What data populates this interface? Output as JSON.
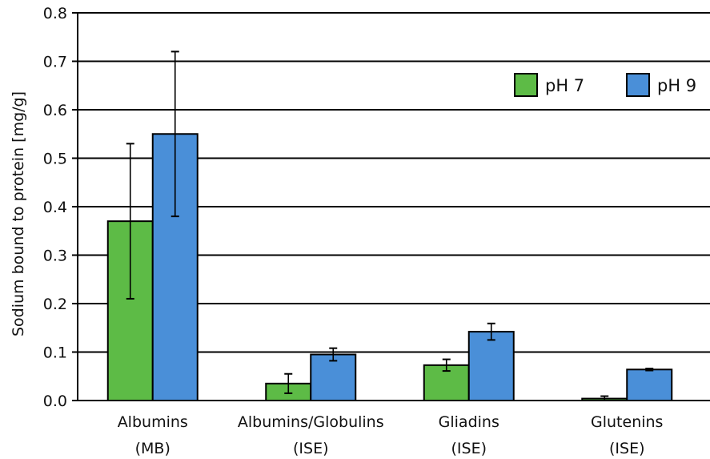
{
  "chart_data": {
    "type": "bar",
    "title": "",
    "xlabel": "",
    "ylabel": "Sodium bound to protein [mg/g]",
    "ylim": [
      0,
      0.8
    ],
    "yticks": [
      "0.0",
      "0.1",
      "0.2",
      "0.3",
      "0.4",
      "0.5",
      "0.6",
      "0.7",
      "0.8"
    ],
    "grid": true,
    "legend_position": "top-right",
    "categories": [
      {
        "line1": "Albumins",
        "line2": "(MB)"
      },
      {
        "line1": "Albumins/Globulins",
        "line2": "(ISE)"
      },
      {
        "line1": "Gliadins",
        "line2": "(ISE)"
      },
      {
        "line1": "Glutenins",
        "line2": "(ISE)"
      }
    ],
    "series": [
      {
        "name": "pH 7",
        "color": "#5dbb46",
        "values": [
          0.37,
          0.035,
          0.073,
          0.004
        ],
        "errors": [
          0.16,
          0.02,
          0.012,
          0.005
        ]
      },
      {
        "name": "pH 9",
        "color": "#4a8fd8",
        "values": [
          0.55,
          0.095,
          0.142,
          0.064
        ],
        "errors": [
          0.17,
          0.013,
          0.017,
          0.002
        ]
      }
    ]
  }
}
